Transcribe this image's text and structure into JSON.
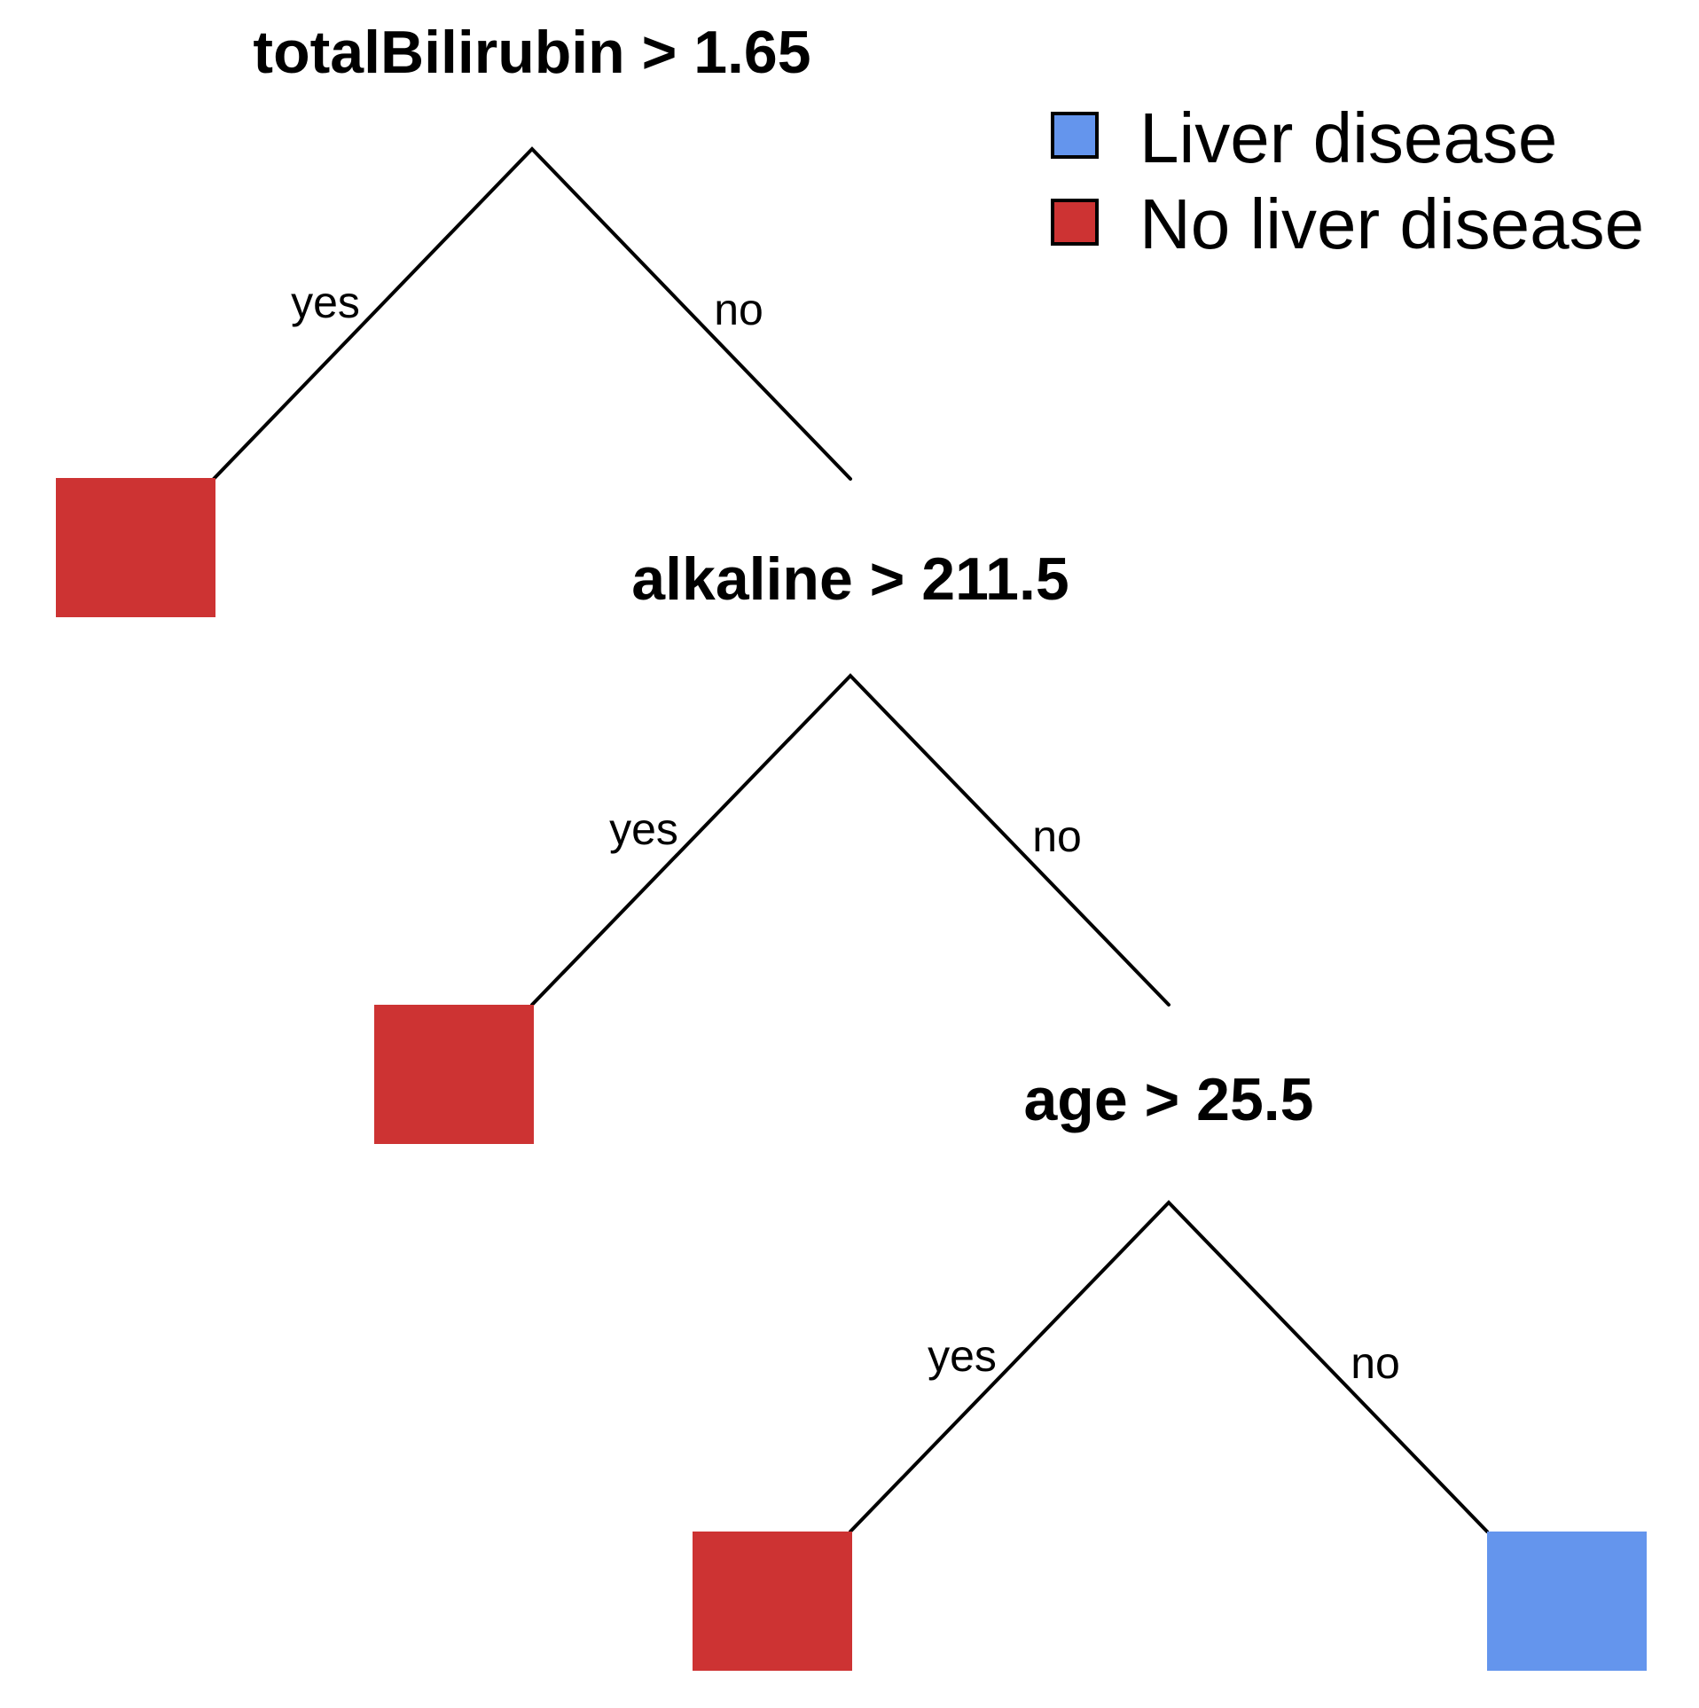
{
  "legend": {
    "items": [
      {
        "label": "Liver disease",
        "color": "#6495ED"
      },
      {
        "label": "No liver disease",
        "color": "#CD3333"
      }
    ]
  },
  "tree": {
    "splits": [
      {
        "condition": "totalBilirubin > 1.65",
        "yes_label": "yes",
        "no_label": "no"
      },
      {
        "condition": "alkaline > 211.5",
        "yes_label": "yes",
        "no_label": "no"
      },
      {
        "condition": "age > 25.5",
        "yes_label": "yes",
        "no_label": "no"
      }
    ],
    "leaves": [
      {
        "class": "No liver disease"
      },
      {
        "class": "No liver disease"
      },
      {
        "class": "No liver disease"
      },
      {
        "class": "Liver disease"
      }
    ]
  }
}
